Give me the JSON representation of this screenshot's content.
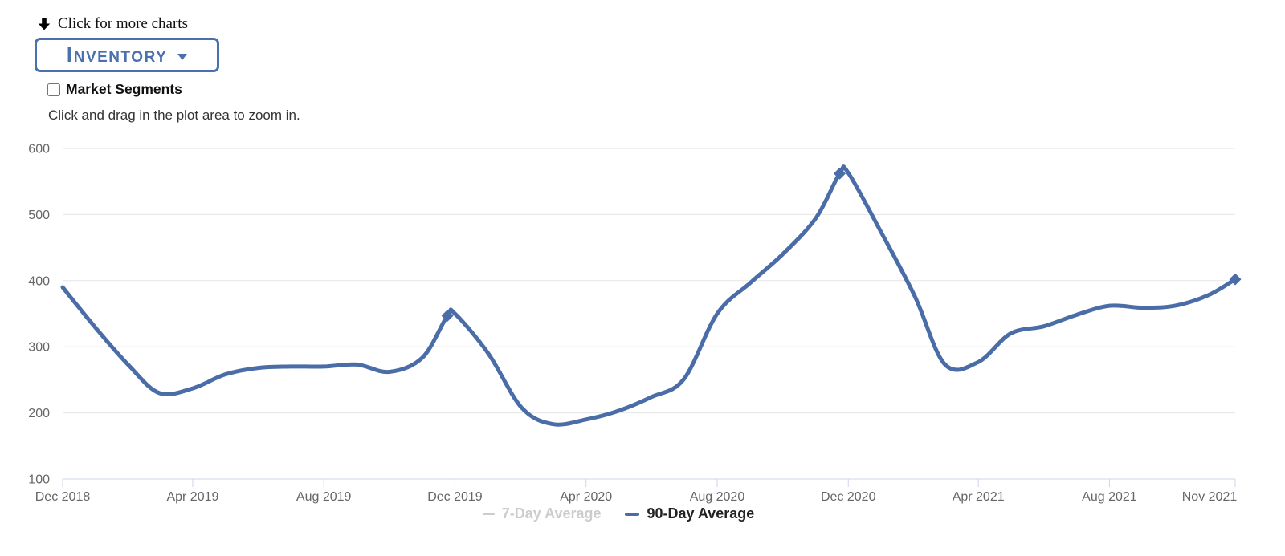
{
  "header": {
    "more_charts_label": "Click for more charts",
    "dropdown_label": "Inventory",
    "market_segments_label": "Market Segments",
    "market_segments_checked": false
  },
  "hint": "Click and drag in the plot area to zoom in.",
  "colors": {
    "accent_blue": "#4a6da8",
    "button_blue": "#4a71ad",
    "hidden_legend_gray": "#cccccc",
    "axis_label_gray": "#666666",
    "gridline": "#e6e6e6",
    "axis_line": "#ccd6eb"
  },
  "chart_data": {
    "type": "line",
    "line_shape": "spline",
    "title": "",
    "xlabel": "",
    "ylabel": "",
    "grid": "horizontal",
    "x_axis": {
      "tick_labels": [
        "Dec 2018",
        "Apr 2019",
        "Aug 2019",
        "Dec 2019",
        "Apr 2020",
        "Aug 2020",
        "Dec 2020",
        "Apr 2021",
        "Aug 2021",
        "Nov 2021"
      ],
      "tick_days": [
        0,
        121,
        243,
        365,
        487,
        609,
        731,
        852,
        974,
        1091
      ]
    },
    "y_axis": {
      "ticks": [
        100,
        200,
        300,
        400,
        500,
        600
      ],
      "range": [
        100,
        600
      ]
    },
    "legend_position": "bottom-center",
    "series": [
      {
        "name": "7-Day Average",
        "visible": false,
        "legend_color": "#cccccc"
      },
      {
        "name": "90-Day Average",
        "visible": true,
        "color": "#4a6da8",
        "point_labels": [
          "Dec 2018",
          "Jan 2019",
          "Feb 2019",
          "Mar 2019",
          "Apr 2019",
          "May 2019",
          "Jun 2019",
          "Jul 2019",
          "Aug 2019",
          "Sep 2019",
          "Oct 2019",
          "Nov 2019",
          "Nov 25 2019",
          "Dec 2019",
          "Jan 2020",
          "Feb 2020",
          "Mar 2020",
          "Apr 2020",
          "May 2020",
          "Jun 2020",
          "Jul 2020",
          "Aug 2020",
          "Sep 2020",
          "Oct 2020",
          "Nov 2020",
          "Nov 23 2020",
          "Dec 2020",
          "Jan 2021",
          "Feb 2021",
          "Mar 2021",
          "Apr 2021",
          "May 2021",
          "Jun 2021",
          "Jul 2021",
          "Aug 2021",
          "Sep 2021",
          "Oct 2021",
          "Nov 2021",
          "Nov 26 2021"
        ],
        "point_days": [
          0,
          31,
          62,
          90,
          121,
          151,
          182,
          212,
          243,
          274,
          304,
          335,
          358,
          365,
          396,
          427,
          456,
          487,
          517,
          548,
          578,
          609,
          640,
          670,
          701,
          723,
          731,
          762,
          793,
          821,
          852,
          882,
          913,
          943,
          974,
          1005,
          1035,
          1066,
          1091
        ],
        "values": [
          390,
          328,
          271,
          230,
          237,
          258,
          268,
          270,
          270,
          273,
          262,
          284,
          347,
          350,
          290,
          208,
          183,
          190,
          203,
          224,
          251,
          350,
          397,
          440,
          495,
          562,
          563,
          472,
          376,
          273,
          277,
          320,
          331,
          348,
          362,
          359,
          362,
          378,
          402
        ],
        "marker_point_labels": [
          "Nov 25 2019",
          "Nov 23 2020",
          "Nov 26 2021"
        ],
        "marker_shape": "diamond"
      }
    ]
  }
}
